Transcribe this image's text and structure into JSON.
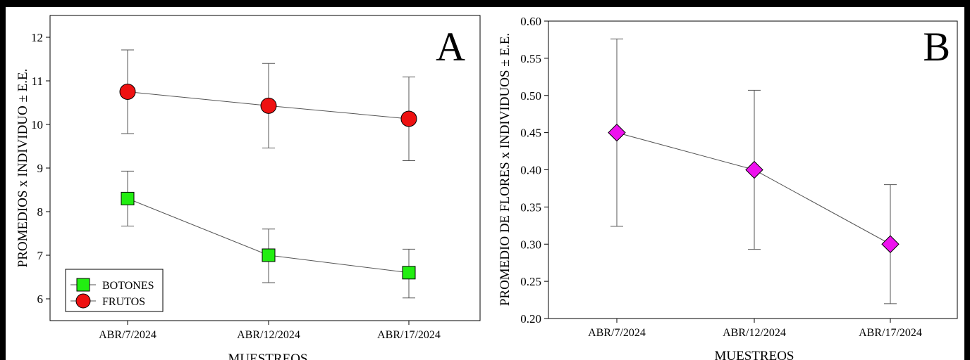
{
  "chart_data": [
    {
      "panel": "A",
      "type": "line",
      "panel_letter": "A",
      "xlabel": "MUESTREOS",
      "ylabel": "PROMEDIOS x INDIVIDUO ± E.E.",
      "categories": [
        "ABR/7/2024",
        "ABR/12/2024",
        "ABR/17/2024"
      ],
      "ylim": [
        5.5,
        12.5
      ],
      "yticks": [
        "6",
        "7",
        "8",
        "9",
        "10",
        "11",
        "12"
      ],
      "grid": false,
      "legend_position": "bottom-left",
      "series": [
        {
          "name": "BOTONES",
          "marker": "square",
          "color": "#22ee11",
          "values": [
            8.3,
            7.0,
            6.6
          ],
          "err_low": [
            7.67,
            6.37,
            6.02
          ],
          "err_high": [
            8.93,
            7.6,
            7.14
          ]
        },
        {
          "name": "FRUTOS",
          "marker": "circle",
          "color": "#ee1111",
          "values": [
            10.75,
            10.43,
            10.13
          ],
          "err_low": [
            9.79,
            9.46,
            9.17
          ],
          "err_high": [
            11.71,
            11.4,
            11.09
          ]
        }
      ]
    },
    {
      "panel": "B",
      "type": "line",
      "panel_letter": "B",
      "xlabel": "MUESTREOS",
      "ylabel": "PROMEDIO DE FLORES x INDIVIDUOS ± E.E.",
      "categories": [
        "ABR/7/2024",
        "ABR/12/2024",
        "ABR/17/2024"
      ],
      "ylim": [
        0.2,
        0.6
      ],
      "yticks": [
        "0.20",
        "0.25",
        "0.30",
        "0.35",
        "0.40",
        "0.45",
        "0.50",
        "0.55",
        "0.60"
      ],
      "grid": false,
      "series": [
        {
          "marker": "diamond",
          "color": "#ee11ee",
          "values": [
            0.45,
            0.4,
            0.3
          ],
          "err_low": [
            0.324,
            0.293,
            0.22
          ],
          "err_high": [
            0.576,
            0.507,
            0.38
          ]
        }
      ]
    }
  ]
}
